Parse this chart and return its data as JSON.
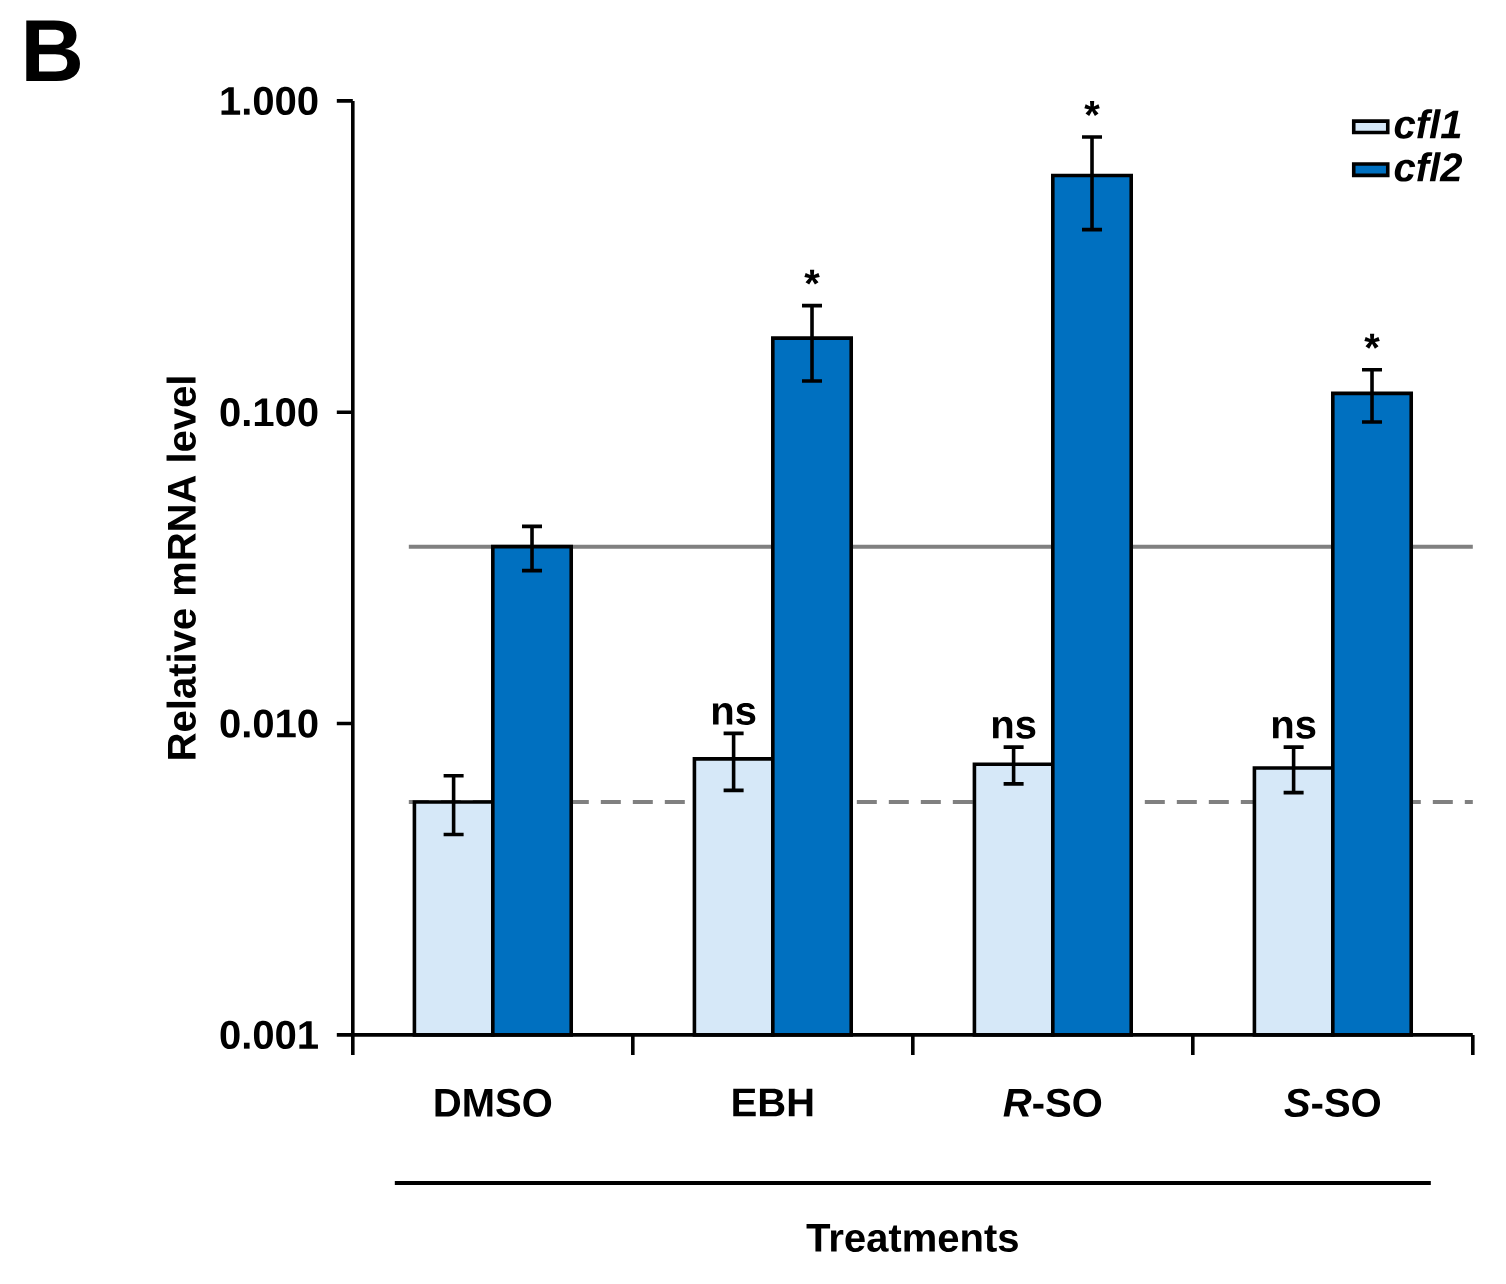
{
  "chart_data": {
    "type": "bar",
    "title": "B",
    "xlabel": "Treatments",
    "ylabel": "Relative mRNA level",
    "categories": [
      "DMSO",
      "EBH",
      "*R*-SO",
      "*S*-SO"
    ],
    "series": [
      {
        "name": "cfl1",
        "color": "#d6e8f8",
        "values": [
          0.0056,
          0.0077,
          0.0074,
          0.0072
        ],
        "errors": [
          0.0012,
          0.0016,
          0.001,
          0.0012
        ]
      },
      {
        "name": "cfl2",
        "color": "#0070c0",
        "values": [
          0.037,
          0.173,
          0.576,
          0.115
        ],
        "errors": [
          0.006,
          0.047,
          0.19,
          0.022
        ]
      }
    ],
    "log": "y",
    "ylim": [
      0.001,
      1
    ],
    "yticks": [
      {
        "value": 0.001,
        "label": "0.001"
      },
      {
        "value": 0.01,
        "label": "0.010"
      },
      {
        "value": 0.1,
        "label": "0.100"
      },
      {
        "value": 1,
        "label": "1.000"
      }
    ],
    "ref_lines": [
      {
        "axis": "y",
        "value": 0.037,
        "color": "#808080",
        "line_style": "solid"
      },
      {
        "axis": "y",
        "value": 0.0056,
        "color": "#808080",
        "line_style": "dashed"
      }
    ],
    "annotations": [
      {
        "text": "ns",
        "x": "EBH",
        "y": 0.0077
      },
      {
        "text": "ns",
        "x": "*R*-SO",
        "y": 0.0074
      },
      {
        "text": "ns",
        "x": "*S*-SO",
        "y": 0.0072
      },
      {
        "text": "*",
        "x": "EBH",
        "y": 0.173
      },
      {
        "text": "*",
        "x": "*R*-SO",
        "y": 0.576
      },
      {
        "text": "*",
        "x": "*S*-SO",
        "y": 0.115
      }
    ],
    "legend": "top right",
    "grid": false
  }
}
